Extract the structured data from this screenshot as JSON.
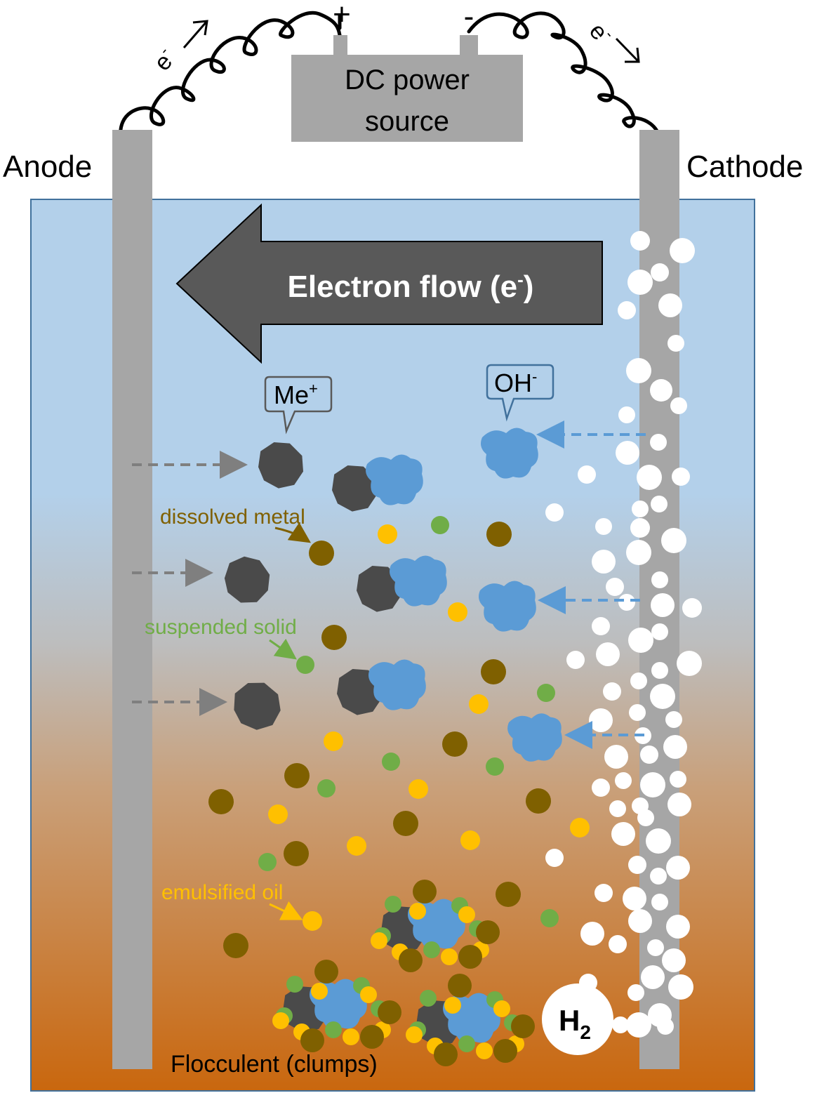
{
  "power_source": {
    "line1": "DC power",
    "line2": "source",
    "plus": "+",
    "minus": "-"
  },
  "electrons": {
    "left": "e",
    "right": "e",
    "sup": "-"
  },
  "electrodes": {
    "anode": "Anode",
    "cathode": "Cathode"
  },
  "electron_flow": {
    "label": "Electron flow (e",
    "sup": "-",
    "close": ")"
  },
  "ions": {
    "metal": "Me",
    "metal_sup": "+",
    "hydroxide": "OH",
    "hydroxide_sup": "-"
  },
  "particles": {
    "dissolved_metal": "dissolved metal",
    "suspended_solid": "suspended solid",
    "emulsified_oil": "emulsified oil"
  },
  "gas": {
    "symbol": "H",
    "subscript": "2"
  },
  "floc": {
    "label": "Flocculent (clumps)"
  },
  "colors": {
    "water_top": "#b3d0ea",
    "water_bottom": "#c9670e",
    "electrode": "#a6a6a6",
    "metal_ion": "#4a4a4a",
    "hydroxide": "#5b9bd5",
    "dissolved_metal": "#7f6000",
    "suspended_solid": "#70ad47",
    "emulsified_oil": "#ffc000",
    "arrow": "#595959"
  }
}
